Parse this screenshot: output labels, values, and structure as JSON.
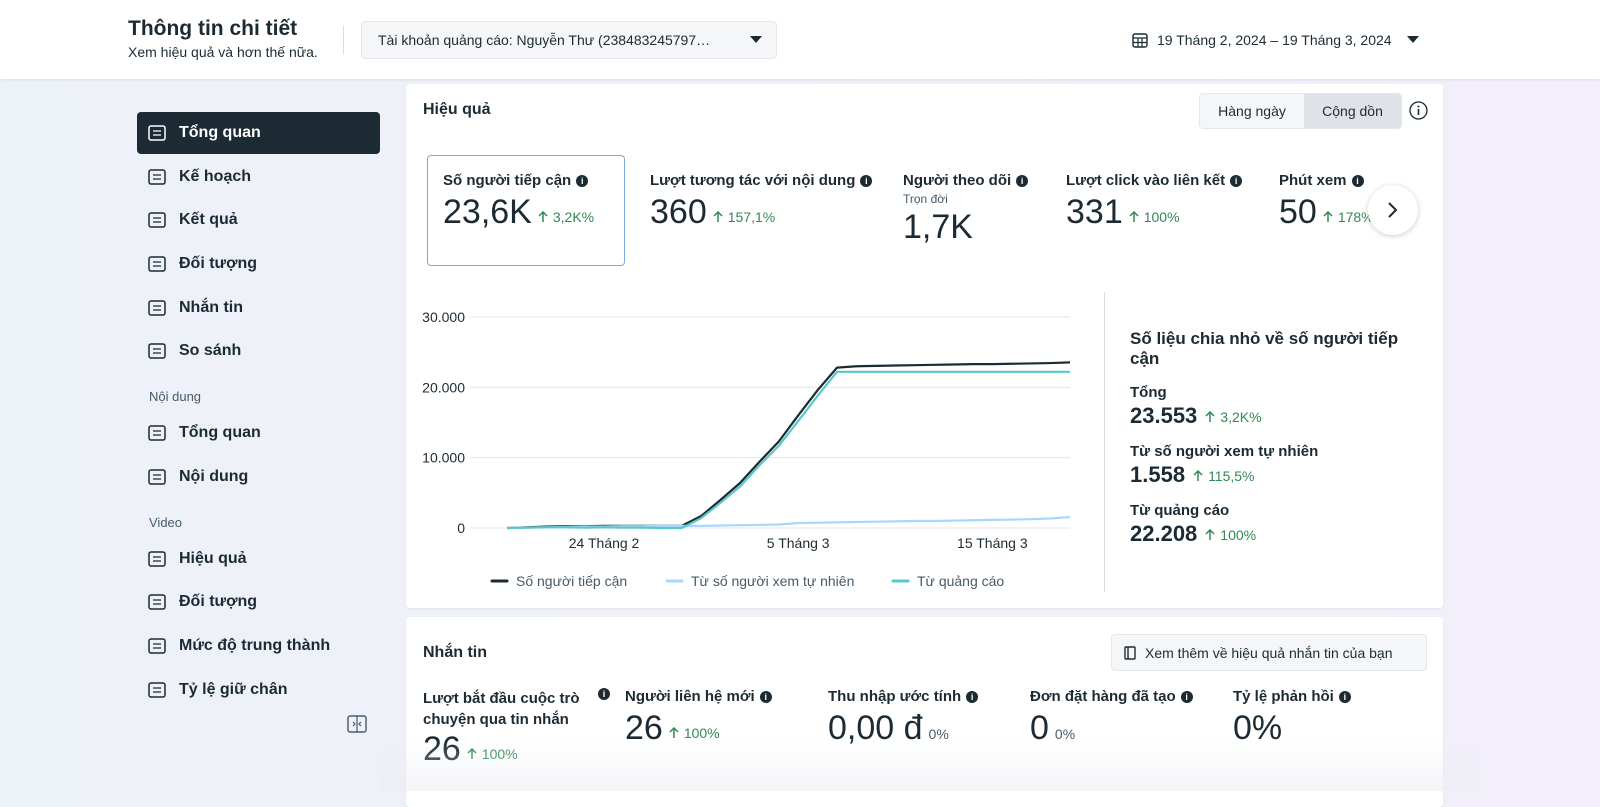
{
  "header": {
    "title": "Thông tin chi tiết",
    "subtitle": "Xem hiệu quả và hơn thế nữa.",
    "account": "Tài khoản quảng cáo: Nguyễn Thư (238483245797…",
    "date_range": "19 Tháng 2, 2024 – 19 Tháng 3, 2024"
  },
  "sidebar": {
    "groups": [
      {
        "items": [
          "Tổng quan",
          "Kế hoạch",
          "Kết quả",
          "Đối tượng",
          "Nhắn tin",
          "So sánh"
        ]
      },
      {
        "title": "Nội dung",
        "items": [
          "Tổng quan",
          "Nội dung"
        ]
      },
      {
        "title": "Video",
        "items": [
          "Hiệu quả",
          "Đối tượng",
          "Mức độ trung thành",
          "Tỷ lệ giữ chân"
        ]
      }
    ]
  },
  "performance": {
    "title": "Hiệu quả",
    "toggle": [
      "Hàng ngày",
      "Cộng dồn"
    ],
    "metrics": [
      {
        "label": "Số người tiếp cận",
        "value": "23,6K",
        "change": "3,2K%"
      },
      {
        "label": "Lượt tương tác với nội dung",
        "value": "360",
        "change": "157,1%"
      },
      {
        "label": "Người theo dõi",
        "sublabel": "Trọn đời",
        "value": "1,7K"
      },
      {
        "label": "Lượt click vào liên kết",
        "value": "331",
        "change": "100%"
      },
      {
        "label": "Phút xem",
        "value": "50",
        "change": "178%"
      }
    ]
  },
  "breakdown": {
    "title": "Số liệu chia nhỏ về số người tiếp cận",
    "items": [
      {
        "label": "Tổng",
        "value": "23.553",
        "change": "3,2K%"
      },
      {
        "label": "Từ số người xem tự nhiên",
        "value": "1.558",
        "change": "115,5%"
      },
      {
        "label": "Từ quảng cáo",
        "value": "22.208",
        "change": "100%"
      }
    ]
  },
  "chart_data": {
    "type": "line",
    "categories": [
      null,
      null,
      null,
      null,
      null,
      "24 Tháng 2",
      null,
      null,
      null,
      null,
      null,
      null,
      null,
      null,
      null,
      "5 Tháng 3",
      null,
      null,
      null,
      null,
      null,
      null,
      null,
      null,
      null,
      "15 Tháng 3",
      null,
      null,
      null,
      null
    ],
    "series": [
      {
        "name": "Số người tiếp cận",
        "color": "#1c2b33",
        "values": [
          0,
          100,
          200,
          250,
          250,
          300,
          300,
          300,
          300,
          300,
          1700,
          4000,
          6400,
          9400,
          12300,
          16000,
          19600,
          22800,
          23000,
          23050,
          23100,
          23150,
          23200,
          23250,
          23300,
          23300,
          23350,
          23400,
          23450,
          23553
        ]
      },
      {
        "name": "Từ số người xem tự nhiên",
        "color": "#a5d8ff",
        "values": [
          0,
          50,
          100,
          150,
          200,
          200,
          250,
          250,
          300,
          300,
          300,
          350,
          400,
          450,
          500,
          700,
          750,
          800,
          850,
          900,
          950,
          1000,
          1000,
          1050,
          1100,
          1150,
          1200,
          1250,
          1350,
          1558
        ]
      },
      {
        "name": "Từ quảng cáo",
        "color": "#5bc8c8",
        "values": [
          0,
          50,
          100,
          100,
          50,
          100,
          50,
          50,
          0,
          0,
          1400,
          3600,
          5900,
          8900,
          11700,
          15200,
          18800,
          22208,
          22208,
          22208,
          22208,
          22208,
          22208,
          22208,
          22208,
          22208,
          22208,
          22208,
          22208,
          22208
        ]
      }
    ],
    "ylim": [
      0,
      30000
    ],
    "yticks": [
      0,
      {
        "value": 10000,
        "label": "10.000"
      },
      {
        "value": 20000,
        "label": "20.000"
      },
      {
        "value": 30000,
        "label": "30.000"
      }
    ],
    "grid": true
  },
  "messaging": {
    "title": "Nhắn tin",
    "button": "Xem thêm về hiệu quả nhắn tin của bạn",
    "metrics": [
      {
        "label": "Lượt bắt đầu cuộc trò chuyện qua tin nhắn",
        "value": "26",
        "change": "100%"
      },
      {
        "label": "Người liên hệ mới",
        "value": "26",
        "change": "100%"
      },
      {
        "label": "Thu nhập ước tính",
        "value": "0,00 đ",
        "change": "0%"
      },
      {
        "label": "Đơn đặt hàng đã tạo",
        "value": "0",
        "change": "0%"
      },
      {
        "label": "Tỷ lệ phản hồi",
        "value": "0%"
      }
    ]
  }
}
